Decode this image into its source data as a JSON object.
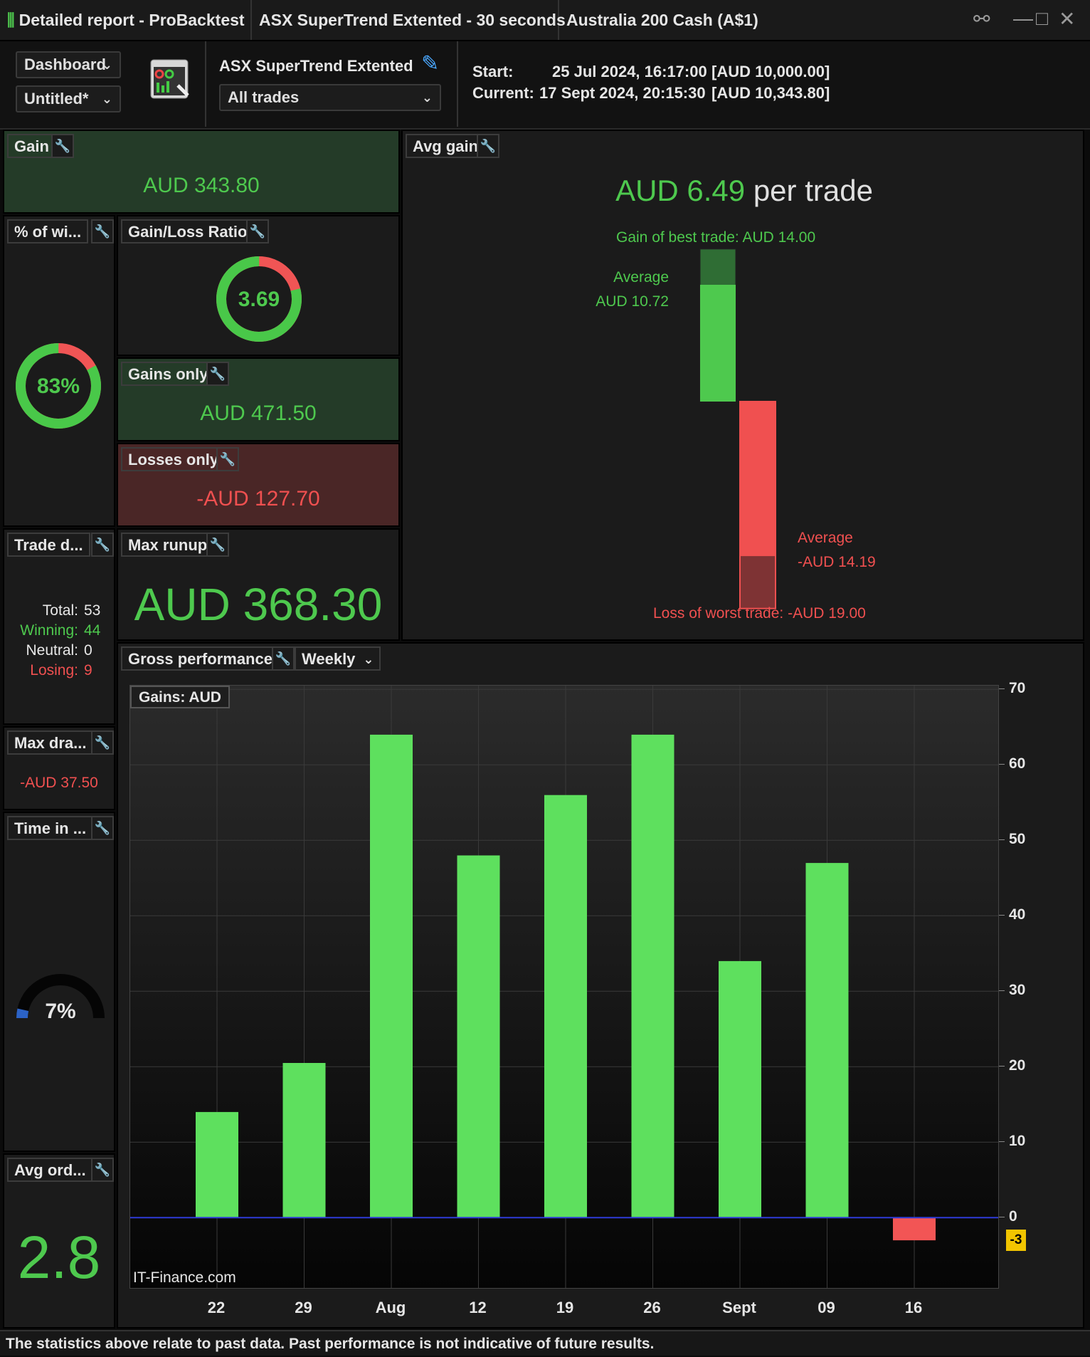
{
  "window": {
    "title": "Detailed report - ProBacktest",
    "strategy_tab": "ASX SuperTrend Extented - 30 seconds",
    "instrument_tab": "Australia 200 Cash (A$1)"
  },
  "toolbar": {
    "view_select": "Dashboard",
    "layout_select": "Untitled*",
    "strategy_name": "ASX SuperTrend Extented",
    "trades_select": "All trades",
    "start_label": "Start:",
    "start_value": "25 Jul 2024, 16:17:00",
    "start_capital": "[AUD 10,000.00]",
    "current_label": "Current:",
    "current_value": "17 Sept 2024, 20:15:30",
    "current_capital": "[AUD 10,343.80]"
  },
  "gain": {
    "title": "Gain",
    "value": "AUD 343.80"
  },
  "win_pct": {
    "title": "% of wi...",
    "value": "83%",
    "fraction": 0.83
  },
  "gain_loss_ratio": {
    "title": "Gain/Loss Ratio",
    "value": "3.69",
    "gain_fraction": 0.79
  },
  "gains_only": {
    "title": "Gains only",
    "value": "AUD 471.50"
  },
  "losses_only": {
    "title": "Losses only",
    "value": "-AUD 127.70"
  },
  "trade_dist": {
    "title": "Trade d...",
    "rows": [
      {
        "label": "Total:",
        "value": "53"
      },
      {
        "label": "Winning:",
        "value": "44"
      },
      {
        "label": "Neutral:",
        "value": "0"
      },
      {
        "label": "Losing:",
        "value": "9"
      }
    ]
  },
  "max_runup": {
    "title": "Max runup",
    "value": "AUD 368.30"
  },
  "max_drawdown": {
    "title": "Max dra...",
    "value": "-AUD 37.50"
  },
  "time_in": {
    "title": "Time in ...",
    "value": "7%",
    "fraction": 0.07
  },
  "avg_orders": {
    "title": "Avg ord...",
    "value": "2.8"
  },
  "avg_gain": {
    "title": "Avg gain",
    "value": "AUD 6.49",
    "suffix": "per trade",
    "best_trade": "Gain of best trade: AUD 14.00",
    "avg_win_label": "Average",
    "avg_win_value": "AUD 10.72",
    "avg_loss_label": "Average",
    "avg_loss_value": "-AUD 14.19",
    "worst_trade": "Loss of worst trade: -AUD 19.00",
    "best": 14.0,
    "avg_win": 10.72,
    "avg_loss": -14.19,
    "worst": -19.0
  },
  "gross_performance": {
    "title": "Gross performance",
    "period_select": "Weekly",
    "legend": "Gains: AUD",
    "watermark": "IT-Finance.com",
    "last_value_badge": "-3"
  },
  "chart_data": {
    "type": "bar",
    "categories": [
      "22",
      "29",
      "Aug",
      "12",
      "19",
      "26",
      "Sept",
      "09",
      "16"
    ],
    "values": [
      14,
      20.5,
      64,
      48,
      56,
      64,
      34,
      47,
      -3
    ],
    "ylim": [
      -9.5,
      70.5
    ],
    "yticks": [
      0,
      10,
      20,
      30,
      40,
      50,
      60,
      70
    ],
    "legend": "Gains: AUD",
    "colors": {
      "positive": "#5ee05e",
      "negative": "#f25555",
      "zero_line": "#2f3bd8"
    }
  },
  "footer": "The statistics above relate to past data. Past performance is not indicative of future results."
}
